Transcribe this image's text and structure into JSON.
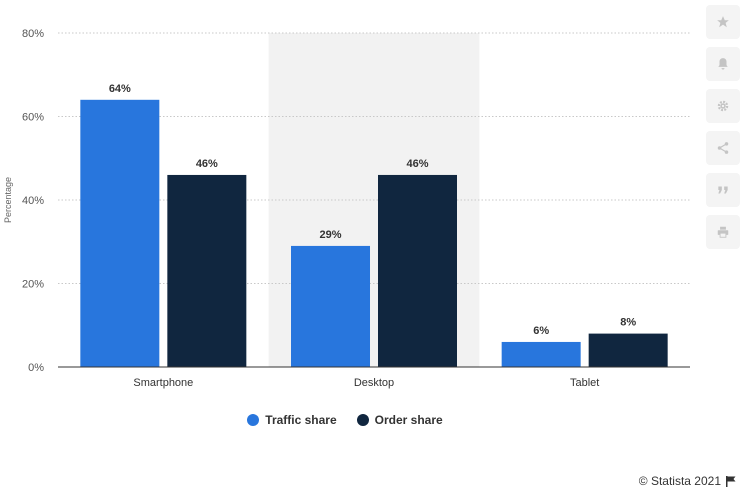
{
  "chart_data": {
    "type": "bar",
    "categories": [
      "Smartphone",
      "Desktop",
      "Tablet"
    ],
    "series": [
      {
        "name": "Traffic share",
        "values": [
          64,
          29,
          6
        ],
        "color": "#2876dd"
      },
      {
        "name": "Order share",
        "values": [
          46,
          46,
          8
        ],
        "color": "#10263f"
      }
    ],
    "value_labels": [
      [
        "64%",
        "29%",
        "6%"
      ],
      [
        "46%",
        "46%",
        "8%"
      ]
    ],
    "ylabel": "Percentage",
    "xlabel": "",
    "ylim": [
      0,
      80
    ],
    "yticks": [
      "0%",
      "20%",
      "40%",
      "60%",
      "80%"
    ],
    "highlighted_category": "Desktop",
    "grid": true,
    "legend_position": "bottom"
  },
  "legend": {
    "items": [
      {
        "label": "Traffic share",
        "color": "#2876dd"
      },
      {
        "label": "Order share",
        "color": "#10263f"
      }
    ]
  },
  "toolbar": {
    "icons": [
      "star-icon",
      "bell-icon",
      "gear-icon",
      "share-icon",
      "quote-icon",
      "print-icon"
    ]
  },
  "credit": {
    "text": "© Statista 2021"
  },
  "colors": {
    "highlight_band": "#f2f2f2",
    "toolbar_bg": "#f4f4f4",
    "toolbar_icon": "#c4c4c4"
  }
}
